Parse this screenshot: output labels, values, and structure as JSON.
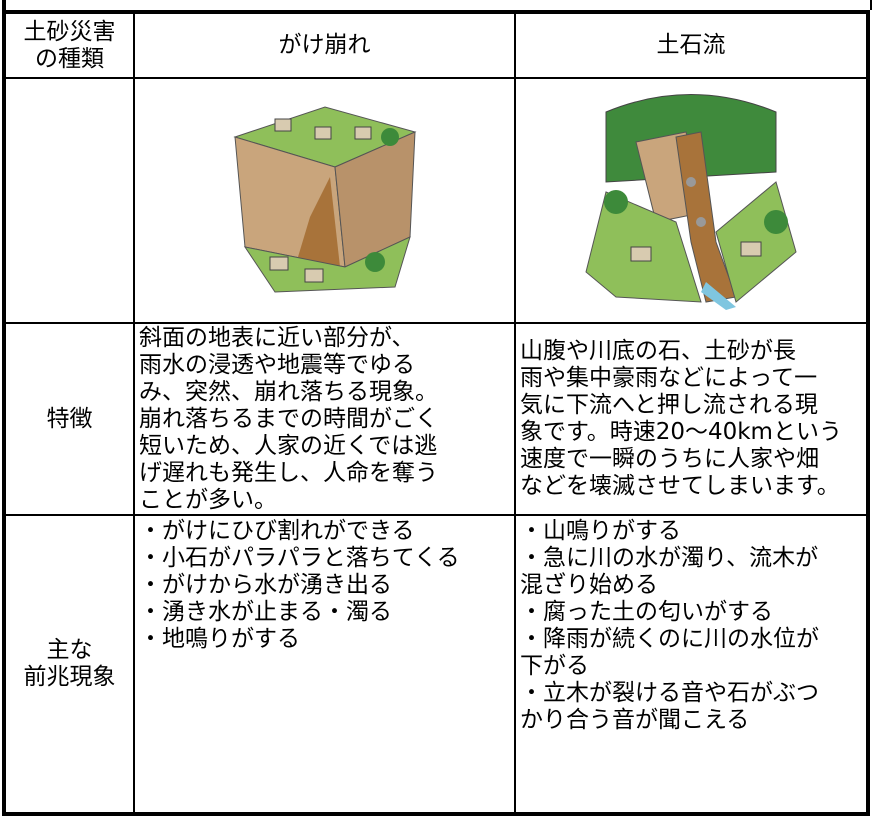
{
  "table": {
    "header": [
      [
        "土砂災害",
        "の種類"
      ],
      "がけ崩れ",
      "土石流"
    ],
    "features": {
      "label": "特徴",
      "cells": [
        [
          "斜面の地表に近い部分が、",
          "雨水の浸透や地震等でゆる",
          "み、突然、崩れ落ちる現象。",
          "崩れ落ちるまでの時間がごく",
          "短いため、人家の近くでは逃",
          "げ遅れも発生し、人命を奪う",
          "ことが多い。"
        ],
        [
          "山腹や川底の石、土砂が長",
          "雨や集中豪雨などによって一",
          "気に下流へと押し流される現",
          "象です。時速20～40kmという",
          "速度で一瞬のうちに人家や畑",
          "などを壊滅させてしまいます。"
        ]
      ]
    },
    "signs": {
      "label": [
        "主な",
        "前兆現象"
      ],
      "cells": [
        [
          "・がけにひび割れができる",
          "・小石がパラパラと落ちてくる",
          "・がけから水が湧き出る",
          "・湧き水が止まる・濁る",
          "・地鳴りがする"
        ],
        [
          "・山鳴りがする",
          "・急に川の水が濁り、流木が",
          "混ざり始める",
          "・腐った土の匂いがする",
          "・降雨が続くのに川の水位が",
          "下がる",
          "・立木が裂ける音や石がぶつ",
          "かり合う音が聞こえる"
        ]
      ]
    }
  }
}
